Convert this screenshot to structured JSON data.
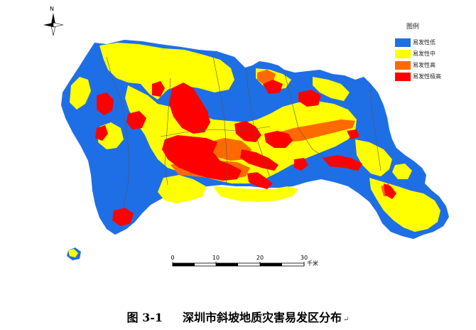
{
  "legend": {
    "title": "图例",
    "items": [
      {
        "label": "易发性低",
        "color": "#1e6fe6"
      },
      {
        "label": "易发性中",
        "color": "#ffff00"
      },
      {
        "label": "易发性高",
        "color": "#ff6a00"
      },
      {
        "label": "易发性极高",
        "color": "#ff0000"
      }
    ]
  },
  "north_arrow": {
    "label": "N",
    "icon": "north-arrow-icon"
  },
  "scale": {
    "ticks": [
      "0",
      "10",
      "20",
      "30"
    ],
    "unit": "千米"
  },
  "caption": {
    "figure_number": "图 3-1",
    "title": "深圳市斜坡地质灾害易发区分布",
    "return_mark": "↵"
  }
}
